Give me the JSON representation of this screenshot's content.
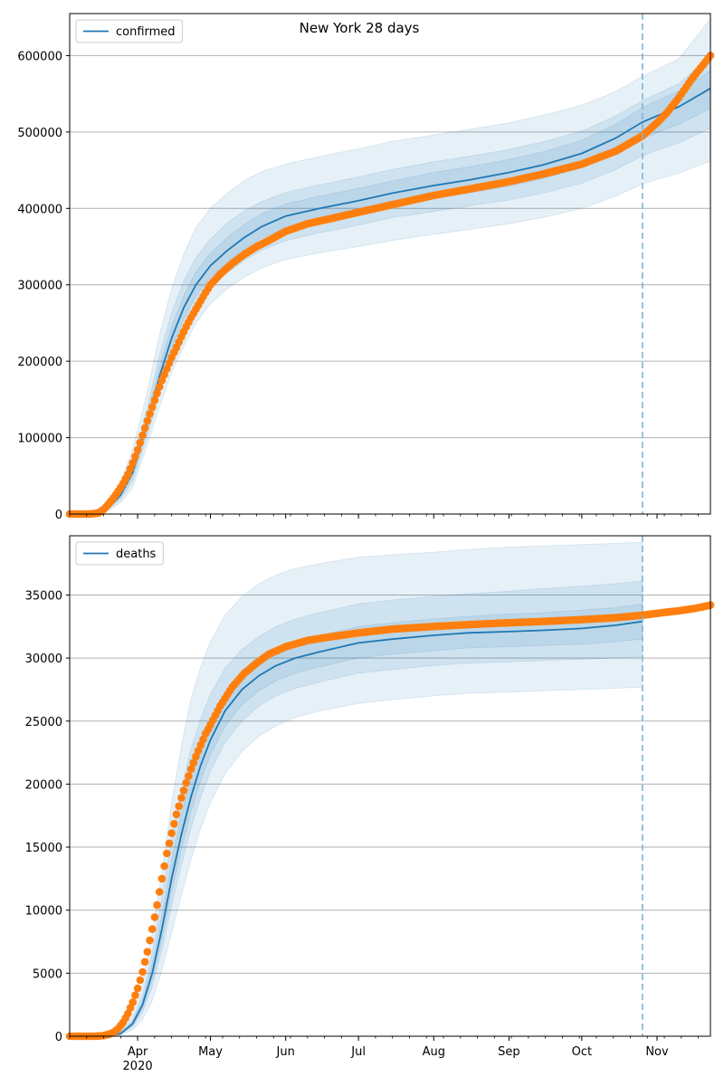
{
  "figure_title": "New York 28 days",
  "colors": {
    "model": "#1f77b4",
    "observed": "#ff7f0e",
    "band": "#1f77b4",
    "grid": "#b0b0b0",
    "forecast_line": "#7fb3d5"
  },
  "chart_data": [
    {
      "type": "line",
      "title": "New York 28 days",
      "legend": "top-left",
      "grid": true,
      "xlabel": "",
      "ylabel": "",
      "ylim": [
        0,
        655000
      ],
      "yticks": [
        0,
        100000,
        200000,
        300000,
        400000,
        500000,
        600000
      ],
      "xticks": [
        {
          "date": "2020-04-01",
          "label": "Apr"
        },
        {
          "date": "2020-05-01",
          "label": "May"
        },
        {
          "date": "2020-06-01",
          "label": "Jun"
        },
        {
          "date": "2020-07-01",
          "label": "Jul"
        },
        {
          "date": "2020-08-01",
          "label": "Aug"
        },
        {
          "date": "2020-09-01",
          "label": "Sep"
        },
        {
          "date": "2020-10-01",
          "label": "Oct"
        },
        {
          "date": "2020-11-01",
          "label": "Nov"
        }
      ],
      "year_label": "2020",
      "xlim": [
        "2020-03-04",
        "2020-11-23"
      ],
      "forecast_start": "2020-10-26",
      "series": [
        {
          "name": "confirmed",
          "kind": "model",
          "dates": [
            "2020-03-04",
            "2020-03-15",
            "2020-03-20",
            "2020-03-25",
            "2020-03-30",
            "2020-04-05",
            "2020-04-10",
            "2020-04-15",
            "2020-04-20",
            "2020-04-25",
            "2020-05-01",
            "2020-05-08",
            "2020-05-15",
            "2020-05-22",
            "2020-06-01",
            "2020-06-15",
            "2020-07-01",
            "2020-07-15",
            "2020-08-01",
            "2020-08-15",
            "2020-09-01",
            "2020-09-15",
            "2020-10-01",
            "2020-10-15",
            "2020-10-26",
            "2020-11-01",
            "2020-11-10",
            "2020-11-23"
          ],
          "values": [
            0,
            3000,
            8000,
            25000,
            55000,
            120000,
            180000,
            230000,
            270000,
            300000,
            325000,
            345000,
            362000,
            376000,
            390000,
            400000,
            410000,
            420000,
            430000,
            437000,
            447000,
            457000,
            472000,
            492000,
            513000,
            521000,
            533000,
            557000
          ],
          "bands": [
            {
              "lower": [
                0,
                1000,
                4000,
                15000,
                35000,
                90000,
                140000,
                185000,
                220000,
                250000,
                275000,
                295000,
                310000,
                322000,
                333000,
                342000,
                350000,
                358000,
                366000,
                372000,
                380000,
                388000,
                400000,
                416000,
                432000,
                438000,
                446000,
                462000
              ],
              "upper": [
                0,
                6000,
                15000,
                42000,
                85000,
                160000,
                235000,
                295000,
                340000,
                375000,
                400000,
                420000,
                437000,
                448000,
                458000,
                468000,
                478000,
                488000,
                496000,
                503000,
                512000,
                522000,
                535000,
                553000,
                573000,
                582000,
                596000,
                648000
              ]
            },
            {
              "lower": [
                0,
                2000,
                6000,
                19000,
                43000,
                102000,
                157000,
                204000,
                241000,
                271000,
                296000,
                316000,
                332000,
                345000,
                358000,
                368000,
                378000,
                388000,
                396000,
                403000,
                411000,
                420000,
                433000,
                451000,
                469000,
                476000,
                486000,
                505000
              ],
              "upper": [
                0,
                4500,
                11000,
                33000,
                68000,
                140000,
                208000,
                263000,
                305000,
                336000,
                360000,
                381000,
                397000,
                409000,
                421000,
                431000,
                441000,
                451000,
                461000,
                468000,
                477000,
                487000,
                501000,
                521000,
                541000,
                550000,
                563000,
                600000
              ]
            },
            {
              "lower": [
                0,
                2500,
                7000,
                22000,
                49000,
                111000,
                168000,
                217000,
                255000,
                285000,
                310000,
                330000,
                347000,
                361000,
                374000,
                384000,
                394000,
                404000,
                413000,
                420000,
                429000,
                439000,
                453000,
                472000,
                491000,
                499000,
                510000,
                531000
              ],
              "upper": [
                0,
                3500,
                9500,
                28000,
                61000,
                130000,
                193000,
                245000,
                286000,
                317000,
                341000,
                362000,
                379000,
                393000,
                406000,
                416000,
                426000,
                436000,
                447000,
                454000,
                464000,
                474000,
                489000,
                510000,
                532000,
                541000,
                554000,
                580000
              ]
            }
          ]
        },
        {
          "name": "",
          "kind": "observed",
          "dates": [
            "2020-03-04",
            "2020-03-10",
            "2020-03-13",
            "2020-03-16",
            "2020-03-18",
            "2020-03-20",
            "2020-03-22",
            "2020-03-24",
            "2020-03-26",
            "2020-03-28",
            "2020-03-30",
            "2020-04-01",
            "2020-04-03",
            "2020-04-05",
            "2020-04-07",
            "2020-04-09",
            "2020-04-11",
            "2020-04-13",
            "2020-04-15",
            "2020-04-17",
            "2020-04-19",
            "2020-04-21",
            "2020-04-23",
            "2020-04-25",
            "2020-04-27",
            "2020-04-29",
            "2020-05-01",
            "2020-05-05",
            "2020-05-10",
            "2020-05-15",
            "2020-05-20",
            "2020-05-25",
            "2020-06-01",
            "2020-06-10",
            "2020-06-20",
            "2020-07-01",
            "2020-07-15",
            "2020-08-01",
            "2020-08-15",
            "2020-09-01",
            "2020-09-15",
            "2020-10-01",
            "2020-10-15",
            "2020-10-26",
            "2020-11-01",
            "2020-11-05",
            "2020-11-10",
            "2020-11-15",
            "2020-11-20",
            "2020-11-23"
          ],
          "values": [
            0,
            0,
            200,
            1500,
            6000,
            13000,
            21000,
            30000,
            40000,
            52000,
            67000,
            84000,
            103000,
            122000,
            140000,
            158000,
            175000,
            190000,
            205000,
            218000,
            232000,
            245000,
            257000,
            268000,
            279000,
            290000,
            300000,
            314000,
            328000,
            340000,
            350000,
            358000,
            370000,
            380000,
            387000,
            395000,
            405000,
            417000,
            425000,
            435000,
            445000,
            458000,
            475000,
            495000,
            512000,
            525000,
            545000,
            568000,
            588000,
            600000
          ]
        }
      ]
    },
    {
      "type": "line",
      "title": "",
      "legend": "top-left",
      "grid": true,
      "xlabel": "",
      "ylabel": "",
      "ylim": [
        0,
        39700
      ],
      "yticks": [
        0,
        5000,
        10000,
        15000,
        20000,
        25000,
        30000,
        35000
      ],
      "xticks": [
        {
          "date": "2020-04-01",
          "label": "Apr"
        },
        {
          "date": "2020-05-01",
          "label": "May"
        },
        {
          "date": "2020-06-01",
          "label": "Jun"
        },
        {
          "date": "2020-07-01",
          "label": "Jul"
        },
        {
          "date": "2020-08-01",
          "label": "Aug"
        },
        {
          "date": "2020-09-01",
          "label": "Sep"
        },
        {
          "date": "2020-10-01",
          "label": "Oct"
        },
        {
          "date": "2020-11-01",
          "label": "Nov"
        }
      ],
      "year_label": "2020",
      "xlim": [
        "2020-03-04",
        "2020-11-23"
      ],
      "forecast_start": "2020-10-26",
      "series": [
        {
          "name": "deaths",
          "kind": "model",
          "dates": [
            "2020-03-04",
            "2020-03-20",
            "2020-03-25",
            "2020-03-30",
            "2020-04-03",
            "2020-04-07",
            "2020-04-11",
            "2020-04-15",
            "2020-04-19",
            "2020-04-23",
            "2020-04-27",
            "2020-05-01",
            "2020-05-07",
            "2020-05-14",
            "2020-05-21",
            "2020-05-28",
            "2020-06-05",
            "2020-06-15",
            "2020-07-01",
            "2020-07-15",
            "2020-08-01",
            "2020-08-15",
            "2020-09-01",
            "2020-09-15",
            "2020-10-01",
            "2020-10-15",
            "2020-10-26"
          ],
          "values": [
            0,
            50,
            200,
            1000,
            2500,
            5000,
            8500,
            12500,
            16000,
            19000,
            21500,
            23500,
            25800,
            27500,
            28600,
            29400,
            30000,
            30500,
            31200,
            31500,
            31800,
            32000,
            32100,
            32200,
            32350,
            32600,
            32900
          ],
          "bands": [
            {
              "lower": [
                0,
                20,
                100,
                500,
                1300,
                2800,
                5200,
                8200,
                11200,
                14000,
                16500,
                18500,
                20800,
                22600,
                23800,
                24600,
                25300,
                25800,
                26400,
                26700,
                27000,
                27200,
                27300,
                27400,
                27500,
                27600,
                27700
              ],
              "upper": [
                0,
                90,
                350,
                1700,
                4200,
                8200,
                13000,
                18500,
                23000,
                26800,
                29300,
                31300,
                33400,
                34900,
                35900,
                36600,
                37100,
                37500,
                38000,
                38200,
                38400,
                38600,
                38800,
                38900,
                39000,
                39100,
                39200
              ]
            },
            {
              "lower": [
                0,
                35,
                150,
                750,
                1900,
                3900,
                6800,
                10300,
                13600,
                16500,
                19000,
                21000,
                23300,
                25000,
                26200,
                27000,
                27600,
                28100,
                28800,
                29100,
                29400,
                29600,
                29700,
                29800,
                29900,
                30000,
                30100
              ],
              "upper": [
                0,
                70,
                280,
                1350,
                3300,
                6600,
                11000,
                15600,
                19600,
                22800,
                25200,
                27100,
                29200,
                30700,
                31700,
                32500,
                33100,
                33600,
                34300,
                34600,
                34900,
                35100,
                35300,
                35500,
                35700,
                35900,
                36100
              ]
            },
            {
              "lower": [
                0,
                42,
                175,
                880,
                2200,
                4450,
                7650,
                11400,
                14800,
                17800,
                20300,
                22300,
                24600,
                26300,
                27400,
                28200,
                28800,
                29300,
                30000,
                30300,
                30600,
                30800,
                30900,
                31000,
                31100,
                31300,
                31500
              ],
              "upper": [
                0,
                60,
                240,
                1170,
                2850,
                5750,
                9600,
                13900,
                17600,
                20700,
                23100,
                25000,
                27100,
                28700,
                29800,
                30600,
                31300,
                31800,
                32500,
                32800,
                33100,
                33300,
                33500,
                33600,
                33800,
                34000,
                34300
              ]
            }
          ]
        },
        {
          "name": "",
          "kind": "observed",
          "dates": [
            "2020-03-04",
            "2020-03-14",
            "2020-03-18",
            "2020-03-20",
            "2020-03-22",
            "2020-03-24",
            "2020-03-26",
            "2020-03-28",
            "2020-03-30",
            "2020-04-01",
            "2020-04-03",
            "2020-04-05",
            "2020-04-07",
            "2020-04-09",
            "2020-04-11",
            "2020-04-13",
            "2020-04-15",
            "2020-04-17",
            "2020-04-19",
            "2020-04-21",
            "2020-04-23",
            "2020-04-25",
            "2020-04-27",
            "2020-04-29",
            "2020-05-01",
            "2020-05-05",
            "2020-05-10",
            "2020-05-15",
            "2020-05-20",
            "2020-05-25",
            "2020-06-01",
            "2020-06-10",
            "2020-06-20",
            "2020-07-01",
            "2020-07-15",
            "2020-08-01",
            "2020-08-15",
            "2020-09-01",
            "2020-09-15",
            "2020-10-01",
            "2020-10-15",
            "2020-10-26",
            "2020-11-01",
            "2020-11-10",
            "2020-11-17",
            "2020-11-23"
          ],
          "values": [
            0,
            0,
            50,
            150,
            300,
            600,
            1100,
            1800,
            2700,
            3800,
            5100,
            6700,
            8500,
            10400,
            12500,
            14500,
            16100,
            17600,
            18900,
            20100,
            21200,
            22200,
            23100,
            24000,
            24700,
            26200,
            27700,
            28800,
            29600,
            30300,
            30900,
            31400,
            31700,
            32000,
            32300,
            32500,
            32650,
            32800,
            32900,
            33050,
            33200,
            33400,
            33550,
            33750,
            33950,
            34200
          ]
        }
      ]
    }
  ]
}
